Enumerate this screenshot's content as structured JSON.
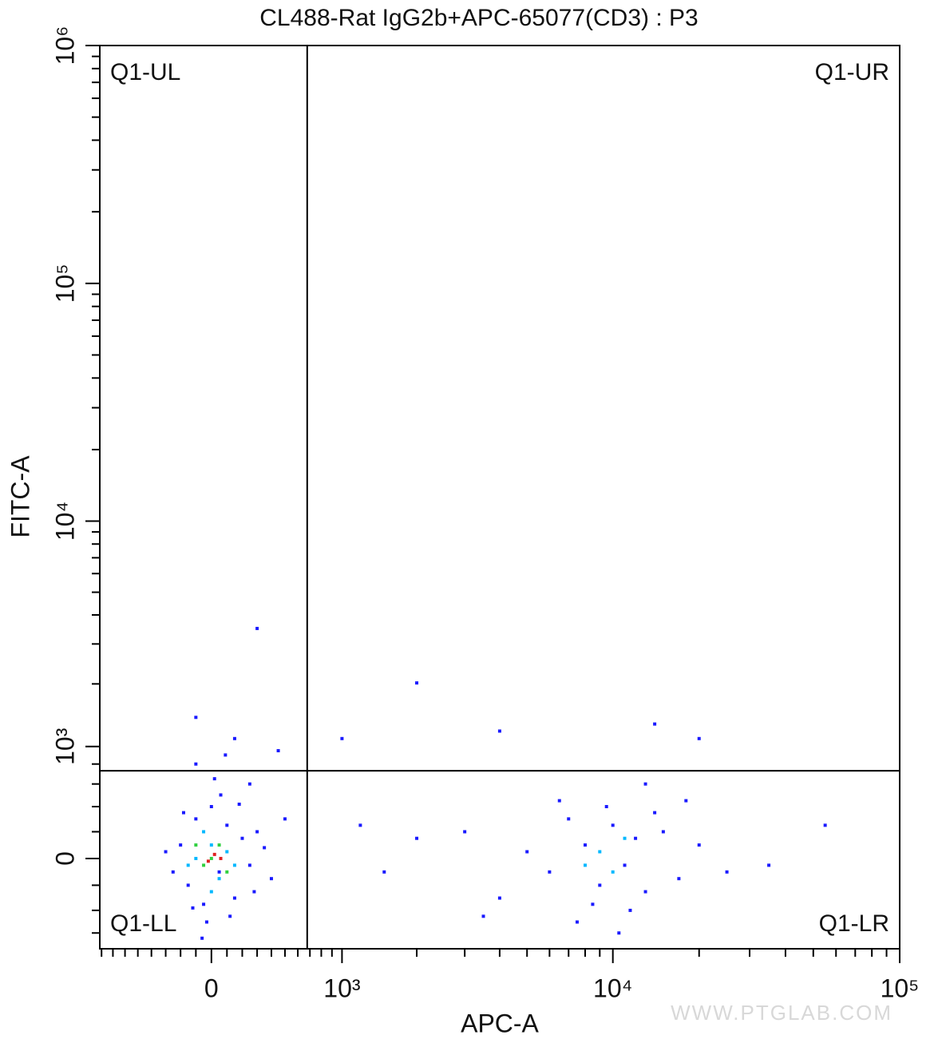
{
  "chart_data": {
    "type": "scatter",
    "title": "CL488-Rat IgG2b+APC-65077(CD3) : P3",
    "x_label": "APC-A",
    "y_label": "FITC-A",
    "xscale": "biexponential",
    "yscale": "biexponential",
    "xlim": [
      -816,
      100000
    ],
    "ylim": [
      -756,
      1000000
    ],
    "xticks": [
      0,
      {
        "value": 1000,
        "label": "10³"
      },
      {
        "value": 10000,
        "label": "10⁴"
      },
      {
        "value": 100000,
        "label": "10⁵"
      }
    ],
    "yticks": [
      0,
      {
        "value": 1000,
        "label": "10³"
      },
      {
        "value": 10000,
        "label": "10⁴"
      },
      {
        "value": 100000,
        "label": "10⁵"
      },
      {
        "value": 1000000,
        "label": "10⁶"
      }
    ],
    "xminorticks": [
      -800,
      -700,
      -600,
      -500,
      -400,
      -300,
      -200,
      -100,
      100,
      200,
      300,
      400,
      500,
      600,
      700,
      800,
      900,
      2000,
      3000,
      4000,
      5000,
      6000,
      7000,
      8000,
      9000,
      20000,
      30000,
      40000,
      50000,
      60000,
      70000,
      80000,
      90000
    ],
    "yminorticks": [
      -600,
      -400,
      -200,
      200,
      400,
      600,
      800,
      2000,
      3000,
      4000,
      5000,
      6000,
      7000,
      8000,
      9000,
      20000,
      30000,
      40000,
      50000,
      60000,
      70000,
      80000,
      90000,
      200000,
      300000,
      400000,
      500000,
      600000,
      700000,
      800000,
      900000
    ],
    "gates": {
      "x": 677,
      "y": 730
    },
    "quadrants": {
      "ul": "Q1-UL",
      "ur": "Q1-UR",
      "ll": "Q1-LL",
      "lr": "Q1-LR"
    },
    "watermark": "WWW.PTGLAB.COM",
    "series": [
      {
        "color": "#1a1aff",
        "x": [
          -200,
          -150,
          -100,
          -50,
          0,
          50,
          100,
          150,
          200,
          250,
          300,
          -250,
          -180,
          120,
          60,
          -30,
          180,
          -120,
          280,
          350,
          400,
          -300,
          20,
          90,
          -60,
          500,
          250,
          150,
          -100,
          450,
          8000,
          9000,
          10000,
          11000,
          12000,
          13000,
          7000,
          6000,
          15000,
          17000,
          5000,
          4000,
          3000,
          20000,
          25000,
          9500,
          11500,
          8500,
          14000,
          7500,
          2000,
          1500,
          1200,
          35000,
          55000,
          18000,
          10500,
          6500,
          3500,
          13000,
          300,
          -100,
          1000,
          4000,
          14000,
          20000,
          2000
        ],
        "y": [
          100,
          -200,
          300,
          -350,
          400,
          -100,
          250,
          -300,
          150,
          -50,
          200,
          -100,
          350,
          -450,
          500,
          -500,
          420,
          -380,
          -250,
          80,
          -150,
          50,
          650,
          900,
          -650,
          300,
          600,
          1100,
          800,
          950,
          100,
          -200,
          250,
          -50,
          150,
          -250,
          300,
          -100,
          200,
          -150,
          50,
          -300,
          200,
          100,
          -100,
          400,
          -400,
          -350,
          350,
          -500,
          150,
          -100,
          250,
          -50,
          250,
          450,
          -600,
          450,
          -450,
          600,
          3500,
          1400,
          1100,
          1200,
          1300,
          1100,
          2020
        ]
      },
      {
        "color": "#00b8ff",
        "x": [
          -100,
          0,
          50,
          -50,
          100,
          150,
          -150,
          0,
          9000,
          10000,
          11000,
          8000
        ],
        "y": [
          0,
          100,
          -150,
          200,
          50,
          -50,
          -50,
          -250,
          50,
          -100,
          150,
          -50
        ]
      },
      {
        "color": "#30d040",
        "x": [
          0,
          50,
          -50,
          100,
          -100
        ],
        "y": [
          0,
          100,
          -50,
          -100,
          100
        ]
      },
      {
        "color": "#e02020",
        "x": [
          20,
          -20,
          60
        ],
        "y": [
          30,
          -20,
          0
        ]
      }
    ]
  }
}
